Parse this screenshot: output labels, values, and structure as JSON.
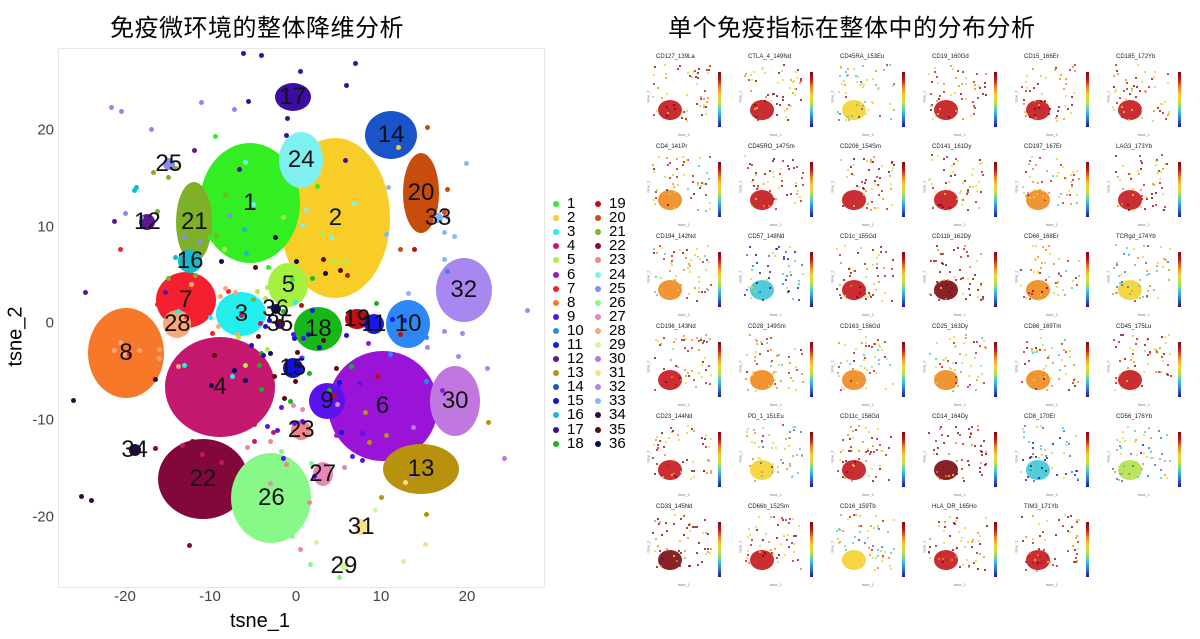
{
  "titles": {
    "left": "免疫微环境的整体降维分析",
    "right": "单个免疫指标在整体中的分布分析"
  },
  "chart_data": [
    {
      "type": "scatter",
      "title": "免疫微环境的整体降维分析",
      "xlabel": "tsne_1",
      "ylabel": "tsne_2",
      "xlim": [
        -27,
        28
      ],
      "ylim": [
        -27,
        28
      ],
      "x_ticks": [
        "-20",
        "-10",
        "0",
        "10",
        "20"
      ],
      "y_ticks": [
        "20",
        "10",
        "0",
        "-10",
        "-20"
      ],
      "grid": false,
      "legend_position": "right",
      "clusters": [
        {
          "id": "1",
          "color": "#33ee22",
          "x": -5.5,
          "y": 12.5
        },
        {
          "id": "2",
          "color": "#f8cd28",
          "x": 4.5,
          "y": 11
        },
        {
          "id": "3",
          "color": "#22eeee",
          "x": -6.5,
          "y": 1
        },
        {
          "id": "4",
          "color": "#c4186e",
          "x": -9,
          "y": -6.5
        },
        {
          "id": "5",
          "color": "#a6f040",
          "x": -1,
          "y": 4
        },
        {
          "id": "6",
          "color": "#9a14d8",
          "x": 10,
          "y": -8.5
        },
        {
          "id": "7",
          "color": "#f42030",
          "x": -13,
          "y": 2.5
        },
        {
          "id": "8",
          "color": "#f67828",
          "x": -20,
          "y": -3
        },
        {
          "id": "9",
          "color": "#5a12ee",
          "x": 3.5,
          "y": -8
        },
        {
          "id": "10",
          "color": "#2b88f4",
          "x": 13,
          "y": 0
        },
        {
          "id": "11",
          "color": "#1818ee",
          "x": 9,
          "y": 0
        },
        {
          "id": "12",
          "color": "#5c1890",
          "x": -17.5,
          "y": 10.5
        },
        {
          "id": "13",
          "color": "#b8920e",
          "x": 14.5,
          "y": -15
        },
        {
          "id": "14",
          "color": "#1a54c8",
          "x": 11,
          "y": 19.5
        },
        {
          "id": "15",
          "color": "#1010d8",
          "x": -0.5,
          "y": -4.5
        },
        {
          "id": "16",
          "color": "#12bcc8",
          "x": -12.5,
          "y": 6.5
        },
        {
          "id": "17",
          "color": "#3a0ea0",
          "x": -0.5,
          "y": 23.5
        },
        {
          "id": "18",
          "color": "#16b818",
          "x": 2.5,
          "y": -0.5
        },
        {
          "id": "19",
          "color": "#c00c14",
          "x": 7,
          "y": 0.5
        },
        {
          "id": "20",
          "color": "#c84c0c",
          "x": 14.5,
          "y": 13.5
        },
        {
          "id": "21",
          "color": "#7eb028",
          "x": -12,
          "y": 10.5
        },
        {
          "id": "22",
          "color": "#82083c",
          "x": -11,
          "y": -16
        },
        {
          "id": "23",
          "color": "#f08888",
          "x": 0.5,
          "y": -11
        },
        {
          "id": "24",
          "color": "#7ef0f0",
          "x": 0.5,
          "y": 17
        },
        {
          "id": "25",
          "color": "#8a8af0",
          "x": -15,
          "y": 16.5
        },
        {
          "id": "26",
          "color": "#88f888",
          "x": -3,
          "y": -18
        },
        {
          "id": "27",
          "color": "#e888b8",
          "x": 3,
          "y": -15.5
        },
        {
          "id": "28",
          "color": "#f8a878",
          "x": -14,
          "y": 0
        },
        {
          "id": "29",
          "color": "#d0f8a0",
          "x": 5.5,
          "y": -25
        },
        {
          "id": "30",
          "color": "#c078e0",
          "x": 18.5,
          "y": -8
        },
        {
          "id": "31",
          "color": "#f8e088",
          "x": 7.5,
          "y": -21
        },
        {
          "id": "32",
          "color": "#a888f0",
          "x": 19.5,
          "y": 3.5
        },
        {
          "id": "33",
          "color": "#88b8f8",
          "x": 16.5,
          "y": 11
        },
        {
          "id": "34",
          "color": "#2a0a40",
          "x": -19,
          "y": -13
        },
        {
          "id": "35",
          "color": "#580a0a",
          "x": -2,
          "y": 0
        },
        {
          "id": "36",
          "color": "#0a0a58",
          "x": -2.5,
          "y": 1.5
        }
      ]
    },
    {
      "type": "scatter",
      "title": "单个免疫指标在整体中的分布分析",
      "xlabel": "tsne_1",
      "ylabel": "tsne_2",
      "colormap": "jet (blue → red, low → high expression)",
      "panels": [
        "CD127_139La",
        "CTLA_4_149Nd",
        "CD45RA_153Eu",
        "CD19_160Gd",
        "CD15_166Er",
        "CD185_172Yb",
        "CD4_141Pr",
        "CD45RO_147Sm",
        "CD206_154Sm",
        "CD141_161Dy",
        "CD197_167Er",
        "LAG3_173Yb",
        "CD194_142Nd",
        "CD57_148Nd",
        "CD1c_155Gd",
        "CD11b_162Dy",
        "CD66_168Er",
        "TCRgd_174Yb",
        "CD196_143Nd",
        "CD28_149Sm",
        "CD163_156Gd",
        "CD25_163Dy",
        "CD86_169Tm",
        "CD45_175Lu",
        "CD23_144Nd",
        "PD_1_151Eu",
        "CD11c_158Gd",
        "CD14_164Dy",
        "CD8_170Er",
        "CD56_176Yb",
        "CD33_145Nd",
        "CD66b_152Sm",
        "CD16_159Tb",
        "HLA_DR_165Ho",
        "TIM3_171Yb"
      ]
    }
  ],
  "left_plot": {
    "axis_x_label": "tsne_1",
    "axis_y_label": "tsne_2",
    "x_ticks": [
      {
        "label": "-20",
        "px": 125
      },
      {
        "label": "-10",
        "px": 210
      },
      {
        "label": "0",
        "px": 296
      },
      {
        "label": "10",
        "px": 381
      },
      {
        "label": "20",
        "px": 467
      }
    ],
    "y_ticks": [
      {
        "label": "20",
        "px": 130
      },
      {
        "label": "10",
        "px": 227
      },
      {
        "label": "0",
        "px": 323
      },
      {
        "label": "-10",
        "px": 420
      },
      {
        "label": "-20",
        "px": 517
      }
    ]
  },
  "mini_axis": {
    "x": "tsne_1",
    "y": "tsne_2"
  }
}
